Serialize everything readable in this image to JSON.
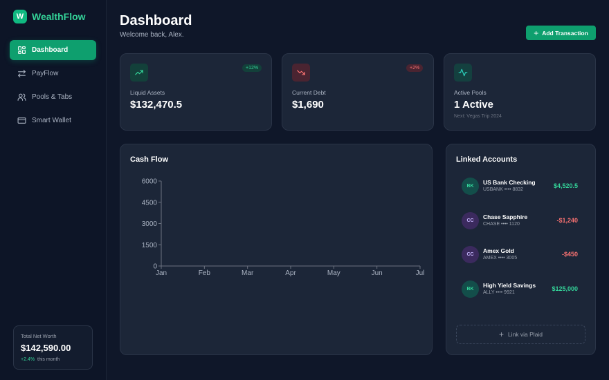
{
  "brand": {
    "logo_letter": "W",
    "name": "WealthFlow"
  },
  "nav": [
    {
      "label": "Dashboard",
      "icon": "grid-icon",
      "active": true
    },
    {
      "label": "PayFlow",
      "icon": "transfer-icon",
      "active": false
    },
    {
      "label": "Pools & Tabs",
      "icon": "users-icon",
      "active": false
    },
    {
      "label": "Smart Wallet",
      "icon": "card-icon",
      "active": false
    }
  ],
  "net_worth": {
    "label": "Total Net Worth",
    "value": "$142,590.00",
    "change": "+2.4%",
    "period": "this month"
  },
  "header": {
    "title": "Dashboard",
    "subtitle": "Welcome back, Alex.",
    "add_button": "Add Transaction"
  },
  "stats": {
    "liquid": {
      "label": "Liquid Assets",
      "value": "$132,470.5",
      "badge": "+12%",
      "icon": "trending-up-icon"
    },
    "debt": {
      "label": "Current Debt",
      "value": "$1,690",
      "badge": "+2%",
      "icon": "trending-down-icon"
    },
    "pools": {
      "label": "Active Pools",
      "value": "1 Active",
      "sub": "Next: Vegas Trip 2024",
      "icon": "activity-icon"
    }
  },
  "cash_flow": {
    "title": "Cash Flow"
  },
  "chart_data": {
    "type": "area",
    "x": [
      "Jan",
      "Feb",
      "Mar",
      "Apr",
      "May",
      "Jun",
      "Jul"
    ],
    "y_ticks": [
      "0",
      "1500",
      "3000",
      "4500",
      "6000"
    ],
    "ylim": [
      0,
      6000
    ],
    "series": [],
    "grid": false
  },
  "linked": {
    "title": "Linked Accounts",
    "accounts": [
      {
        "initials": "BK",
        "name": "US Bank Checking",
        "sub": "USBANK •••• 8832",
        "amount": "$4,520.5",
        "kind": "bank"
      },
      {
        "initials": "CC",
        "name": "Chase Sapphire",
        "sub": "CHASE •••• 1120",
        "amount": "-$1,240",
        "kind": "credit"
      },
      {
        "initials": "CC",
        "name": "Amex Gold",
        "sub": "AMEX •••• 3005",
        "amount": "-$450",
        "kind": "credit"
      },
      {
        "initials": "BK",
        "name": "High Yield Savings",
        "sub": "ALLY •••• 9921",
        "amount": "$125,000",
        "kind": "bank"
      }
    ],
    "plaid_button": "Link via Plaid"
  },
  "colors": {
    "accent": "#10b981",
    "positive": "#34d399",
    "negative": "#f87171",
    "bank_avatar": "#134e4a",
    "credit_avatar": "#3b2a5e"
  }
}
